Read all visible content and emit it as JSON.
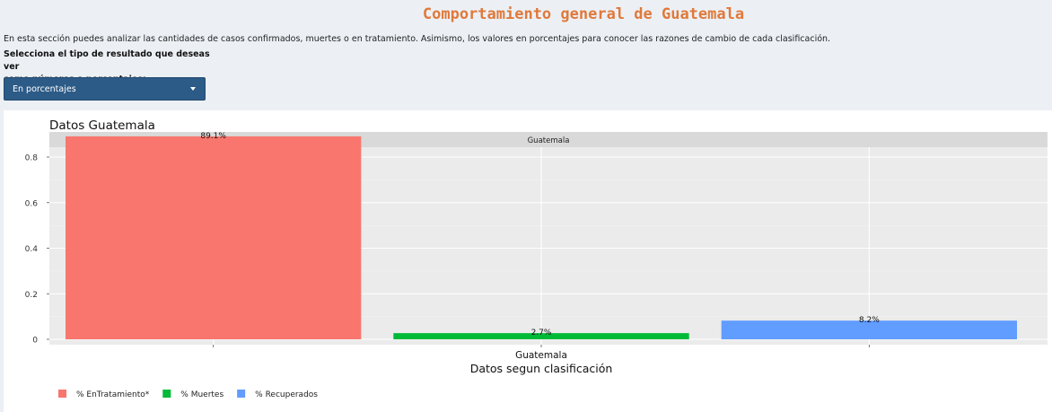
{
  "page": {
    "title": "Comportamiento general de Guatemala",
    "intro": "En esta sección puedes analizar las cantidades de casos confirmados, muertes o en tratamiento. Asimismo, los valores en porcentajes para conocer las razones de cambio de cada clasificación.",
    "select_label_line1": "Selecciona el tipo de resultado que deseas ver",
    "select_label_line2": "como números o porcentajes:",
    "dropdown_value": "En porcentajes"
  },
  "colors": {
    "title": "#e0793a",
    "dropdown_bg": "#2d5b87",
    "panel_bg": "#ebebeb",
    "strip_bg": "#d9d9d9"
  },
  "chart_data": {
    "type": "bar",
    "title": "Datos Guatemala",
    "facet_label": "Guatemala",
    "xlabel": "Datos segun clasificación",
    "ylabel": "",
    "x_tick_label": "Guatemala",
    "ylim": [
      0,
      0.9
    ],
    "yticks": [
      0,
      0.2,
      0.4,
      0.6,
      0.8
    ],
    "ytick_labels": [
      "0",
      "0.2",
      "0.4",
      "0.6",
      "0.8"
    ],
    "grid": true,
    "legend_position": "bottom-left",
    "series": [
      {
        "name": "% EnTratamiento*",
        "value": 0.891,
        "label": "89.1%",
        "color": "#f8766d"
      },
      {
        "name": "% Muertes",
        "value": 0.027,
        "label": "2.7%",
        "color": "#00ba38"
      },
      {
        "name": "% Recuperados",
        "value": 0.082,
        "label": "8.2%",
        "color": "#619cff"
      }
    ]
  }
}
